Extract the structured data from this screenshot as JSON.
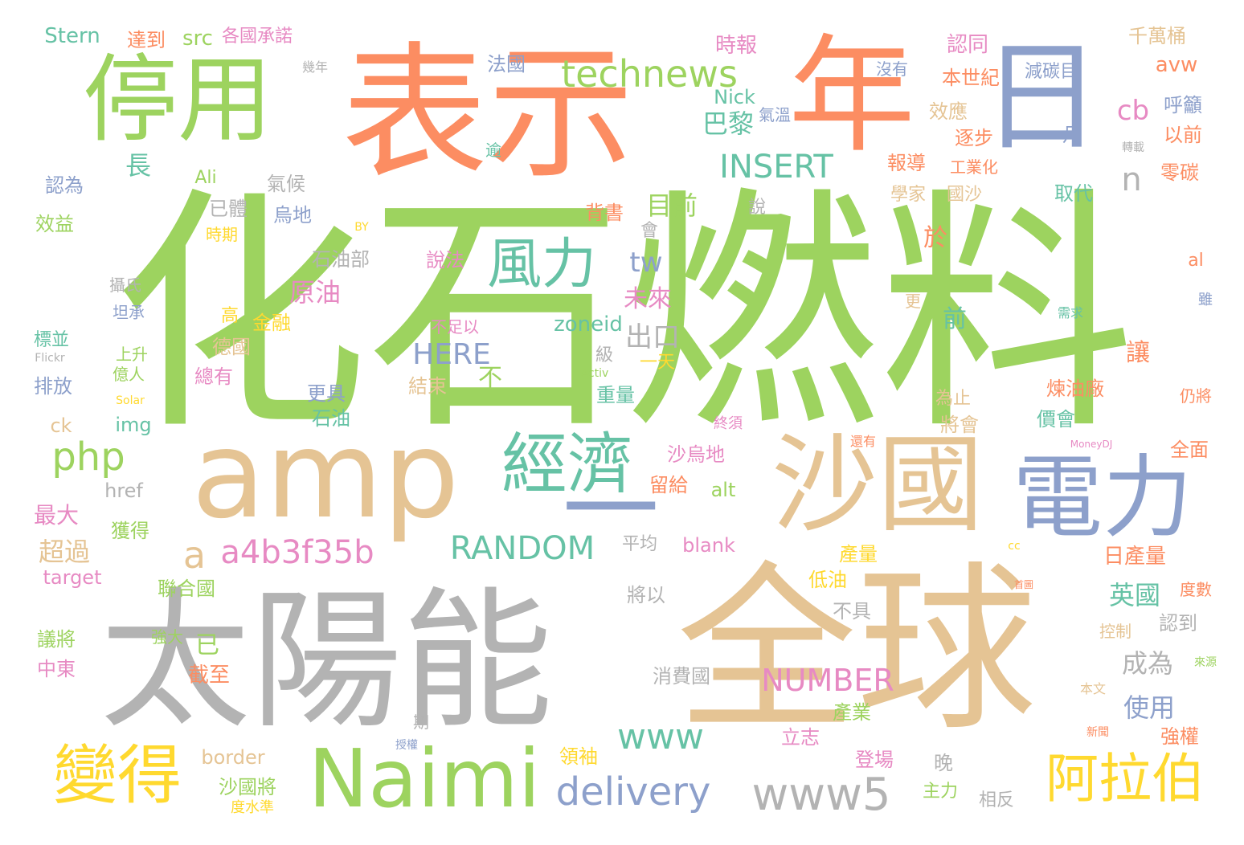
{
  "palette": {
    "green": "#9dd35f",
    "orange": "#fc8d62",
    "tan": "#e5c494",
    "gray": "#b3b3b3",
    "blue": "#8da0cb",
    "teal": "#66c2a5",
    "pink": "#e78ac3",
    "yellow": "#ffd92f"
  },
  "words": [
    {
      "text": "化石燃料",
      "color": "green"
    },
    {
      "text": "表示",
      "color": "orange"
    },
    {
      "text": "年",
      "color": "orange"
    },
    {
      "text": "日",
      "color": "blue"
    },
    {
      "text": "停用",
      "color": "green"
    },
    {
      "text": "amp",
      "color": "tan"
    },
    {
      "text": "太陽能",
      "color": "gray"
    },
    {
      "text": "全球",
      "color": "tan"
    },
    {
      "text": "沙國",
      "color": "tan"
    },
    {
      "text": "電力",
      "color": "blue"
    },
    {
      "text": "Naimi",
      "color": "green"
    },
    {
      "text": "一",
      "color": "blue"
    },
    {
      "text": "經濟",
      "color": "teal"
    },
    {
      "text": "風力",
      "color": "teal"
    },
    {
      "text": "變得",
      "color": "yellow"
    },
    {
      "text": "阿拉伯",
      "color": "yellow"
    },
    {
      "text": "www5",
      "color": "gray"
    },
    {
      "text": "technews",
      "color": "green"
    },
    {
      "text": "INSERT",
      "color": "teal"
    },
    {
      "text": "RANDOM",
      "color": "teal"
    },
    {
      "text": "delivery",
      "color": "blue"
    },
    {
      "text": "a4b3f35b",
      "color": "pink"
    },
    {
      "text": "php",
      "color": "green"
    },
    {
      "text": "NUMBER",
      "color": "pink"
    },
    {
      "text": "www",
      "color": "teal"
    },
    {
      "text": "HERE",
      "color": "blue"
    },
    {
      "text": "a",
      "color": "tan"
    },
    {
      "text": "n",
      "color": "gray"
    },
    {
      "text": "cb",
      "color": "pink"
    },
    {
      "text": "tw",
      "color": "blue"
    },
    {
      "text": "巴黎",
      "color": "teal"
    },
    {
      "text": "目前",
      "color": "green"
    },
    {
      "text": "原油",
      "color": "pink"
    },
    {
      "text": "未來",
      "color": "pink"
    },
    {
      "text": "出口",
      "color": "gray"
    },
    {
      "text": "zoneid",
      "color": "teal"
    },
    {
      "text": "長",
      "color": "teal"
    },
    {
      "text": "Stern",
      "color": "teal"
    },
    {
      "text": "src",
      "color": "green"
    },
    {
      "text": "達到",
      "color": "orange"
    },
    {
      "text": "各國承諾",
      "color": "pink"
    },
    {
      "text": "幾年",
      "color": "gray"
    },
    {
      "text": "法國",
      "color": "blue"
    },
    {
      "text": "時報",
      "color": "pink"
    },
    {
      "text": "認同",
      "color": "pink"
    },
    {
      "text": "本世紀",
      "color": "orange"
    },
    {
      "text": "沒有",
      "color": "blue"
    },
    {
      "text": "減碳目",
      "color": "blue"
    },
    {
      "text": "千萬桶",
      "color": "tan"
    },
    {
      "text": "avw",
      "color": "orange"
    },
    {
      "text": "呼籲",
      "color": "blue"
    },
    {
      "text": "以前",
      "color": "orange"
    },
    {
      "text": "零碳",
      "color": "orange"
    },
    {
      "text": "轉載",
      "color": "gray"
    },
    {
      "text": "月",
      "color": "blue"
    },
    {
      "text": "Nick",
      "color": "teal"
    },
    {
      "text": "氣溫",
      "color": "blue"
    },
    {
      "text": "效應",
      "color": "tan"
    },
    {
      "text": "逐步",
      "color": "orange"
    },
    {
      "text": "逾",
      "color": "teal"
    },
    {
      "text": "報導",
      "color": "orange"
    },
    {
      "text": "工業化",
      "color": "orange"
    },
    {
      "text": "學家",
      "color": "tan"
    },
    {
      "text": "國沙",
      "color": "tan"
    },
    {
      "text": "取代",
      "color": "teal"
    },
    {
      "text": "認為",
      "color": "blue"
    },
    {
      "text": "Ali",
      "color": "green"
    },
    {
      "text": "氣候",
      "color": "gray"
    },
    {
      "text": "已體",
      "color": "gray"
    },
    {
      "text": "烏地",
      "color": "blue"
    },
    {
      "text": "說",
      "color": "gray"
    },
    {
      "text": "背書",
      "color": "orange"
    },
    {
      "text": "效益",
      "color": "green"
    },
    {
      "text": "時期",
      "color": "yellow"
    },
    {
      "text": "BY",
      "color": "yellow"
    },
    {
      "text": "會",
      "color": "gray"
    },
    {
      "text": "石油部",
      "color": "gray"
    },
    {
      "text": "說法",
      "color": "pink"
    },
    {
      "text": "於",
      "color": "orange"
    },
    {
      "text": "攝氏",
      "color": "gray"
    },
    {
      "text": "坦承",
      "color": "blue"
    },
    {
      "text": "高",
      "color": "yellow"
    },
    {
      "text": "金融",
      "color": "yellow"
    },
    {
      "text": "不足以",
      "color": "pink"
    },
    {
      "text": "更",
      "color": "tan"
    },
    {
      "text": "前",
      "color": "teal"
    },
    {
      "text": "al",
      "color": "orange"
    },
    {
      "text": "需求",
      "color": "teal"
    },
    {
      "text": "雖",
      "color": "blue"
    },
    {
      "text": "標並",
      "color": "teal"
    },
    {
      "text": "Flickr",
      "color": "gray"
    },
    {
      "text": "上升",
      "color": "green"
    },
    {
      "text": "德國",
      "color": "tan"
    },
    {
      "text": "億人",
      "color": "green"
    },
    {
      "text": "級",
      "color": "gray"
    },
    {
      "text": "一天",
      "color": "yellow"
    },
    {
      "text": "總有",
      "color": "pink"
    },
    {
      "text": "排放",
      "color": "blue"
    },
    {
      "text": "Activ",
      "color": "green"
    },
    {
      "text": "不",
      "color": "green"
    },
    {
      "text": "結束",
      "color": "tan"
    },
    {
      "text": "重量",
      "color": "teal"
    },
    {
      "text": "Solar",
      "color": "yellow"
    },
    {
      "text": "仍將",
      "color": "orange"
    },
    {
      "text": "更具",
      "color": "blue"
    },
    {
      "text": "讓",
      "color": "orange"
    },
    {
      "text": "煉油廠",
      "color": "orange"
    },
    {
      "text": "為止",
      "color": "tan"
    },
    {
      "text": "價會",
      "color": "teal"
    },
    {
      "text": "img",
      "color": "teal"
    },
    {
      "text": "石油",
      "color": "teal"
    },
    {
      "text": "將會",
      "color": "tan"
    },
    {
      "text": "ck",
      "color": "tan"
    },
    {
      "text": "終須",
      "color": "pink"
    },
    {
      "text": "全面",
      "color": "orange"
    },
    {
      "text": "還有",
      "color": "orange"
    },
    {
      "text": "沙烏地",
      "color": "pink"
    },
    {
      "text": "MoneyDJ",
      "color": "pink"
    },
    {
      "text": "href",
      "color": "gray"
    },
    {
      "text": "alt",
      "color": "green"
    },
    {
      "text": "留給",
      "color": "orange"
    },
    {
      "text": "最大",
      "color": "pink"
    },
    {
      "text": "獲得",
      "color": "green"
    },
    {
      "text": "blank",
      "color": "pink"
    },
    {
      "text": "平均",
      "color": "gray"
    },
    {
      "text": "產量",
      "color": "yellow"
    },
    {
      "text": "日產量",
      "color": "orange"
    },
    {
      "text": "cc",
      "color": "yellow"
    },
    {
      "text": "超過",
      "color": "tan"
    },
    {
      "text": "target",
      "color": "pink"
    },
    {
      "text": "聯合國",
      "color": "green"
    },
    {
      "text": "將以",
      "color": "gray"
    },
    {
      "text": "低油",
      "color": "yellow"
    },
    {
      "text": "首圖",
      "color": "orange"
    },
    {
      "text": "英國",
      "color": "teal"
    },
    {
      "text": "度數",
      "color": "orange"
    },
    {
      "text": "不具",
      "color": "gray"
    },
    {
      "text": "認到",
      "color": "gray"
    },
    {
      "text": "控制",
      "color": "tan"
    },
    {
      "text": "已",
      "color": "green"
    },
    {
      "text": "強大",
      "color": "green"
    },
    {
      "text": "議將",
      "color": "green"
    },
    {
      "text": "中東",
      "color": "pink"
    },
    {
      "text": "截至",
      "color": "orange"
    },
    {
      "text": "消費國",
      "color": "gray"
    },
    {
      "text": "成為",
      "color": "gray"
    },
    {
      "text": "來源",
      "color": "green"
    },
    {
      "text": "本文",
      "color": "tan"
    },
    {
      "text": "使用",
      "color": "blue"
    },
    {
      "text": "產業",
      "color": "green"
    },
    {
      "text": "期",
      "color": "gray"
    },
    {
      "text": "授權",
      "color": "blue"
    },
    {
      "text": "border",
      "color": "tan"
    },
    {
      "text": "領袖",
      "color": "yellow"
    },
    {
      "text": "立志",
      "color": "pink"
    },
    {
      "text": "強權",
      "color": "orange"
    },
    {
      "text": "新聞",
      "color": "orange"
    },
    {
      "text": "晚",
      "color": "gray"
    },
    {
      "text": "登場",
      "color": "pink"
    },
    {
      "text": "沙國將",
      "color": "green"
    },
    {
      "text": "主力",
      "color": "green"
    },
    {
      "text": "度水準",
      "color": "yellow"
    },
    {
      "text": "相反",
      "color": "gray"
    }
  ]
}
